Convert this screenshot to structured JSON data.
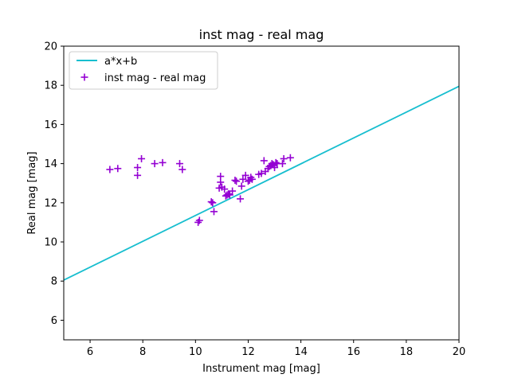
{
  "chart_data": {
    "type": "scatter",
    "title": "inst mag - real mag",
    "xlabel": "Instrument mag [mag]",
    "ylabel": "Real mag [mag]",
    "xlim": [
      5,
      20
    ],
    "ylim": [
      5,
      20
    ],
    "xticks": [
      6,
      8,
      10,
      12,
      14,
      16,
      18,
      20
    ],
    "yticks": [
      6,
      8,
      10,
      12,
      14,
      16,
      18,
      20
    ],
    "grid": false,
    "legend_position": "top-left",
    "series": [
      {
        "name": "a*x+b",
        "kind": "line",
        "color": "#17becf",
        "x": [
          5,
          20
        ],
        "y": [
          8.05,
          17.95
        ]
      },
      {
        "name": "inst mag - real mag",
        "kind": "scatter",
        "marker": "plus",
        "color": "#9400d3",
        "x": [
          6.75,
          7.05,
          7.8,
          7.8,
          7.95,
          8.45,
          8.75,
          9.4,
          9.5,
          10.1,
          10.15,
          10.6,
          10.65,
          10.7,
          10.9,
          10.95,
          10.95,
          11.0,
          11.1,
          11.15,
          11.2,
          11.25,
          11.3,
          11.4,
          11.5,
          11.55,
          11.7,
          11.75,
          11.8,
          11.9,
          12.0,
          12.05,
          12.1,
          12.15,
          12.4,
          12.5,
          12.6,
          12.65,
          12.75,
          12.8,
          12.85,
          12.9,
          12.95,
          13.0,
          13.05,
          13.1,
          13.3,
          13.35,
          13.6
        ],
        "y": [
          13.7,
          13.75,
          13.8,
          13.4,
          14.25,
          14.0,
          14.05,
          14.0,
          13.7,
          11.0,
          11.1,
          12.05,
          12.0,
          11.55,
          12.75,
          13.05,
          13.35,
          12.8,
          12.7,
          12.35,
          12.4,
          12.45,
          12.4,
          12.6,
          13.15,
          13.1,
          12.2,
          12.85,
          13.2,
          13.4,
          13.1,
          13.15,
          13.3,
          13.2,
          13.45,
          13.5,
          14.15,
          13.6,
          13.75,
          13.85,
          13.9,
          14.0,
          13.95,
          13.8,
          14.05,
          14.0,
          14.0,
          14.25,
          14.3
        ]
      }
    ]
  }
}
